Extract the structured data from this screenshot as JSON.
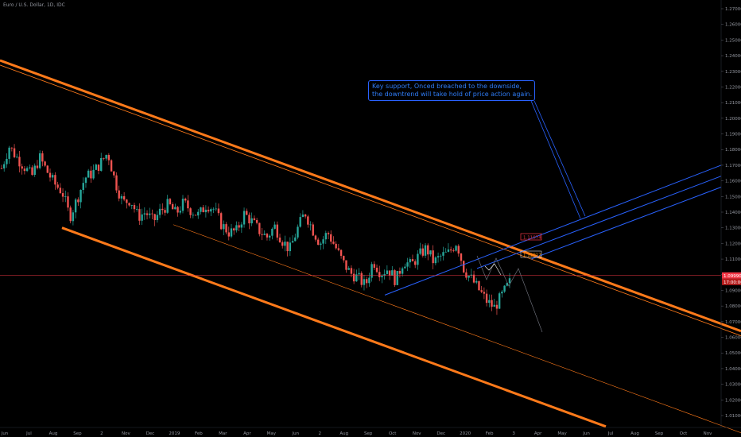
{
  "header": {
    "symbol": "Euro / U.S. Dollar, 1D, IDC"
  },
  "annotation": {
    "line1": "Key support, Onced breached to the downside,",
    "line2": "the downtrend will take hold of price action again."
  },
  "colors": {
    "background": "#000000",
    "channel": "#ff7a1a",
    "support": "#2962ff",
    "text": "#9598a1",
    "up_candle": "#26a69a",
    "down_candle": "#ef5350",
    "price_line": "#f23645",
    "badge": "#f23645"
  },
  "chart_data": {
    "type": "line",
    "title": "Euro / U.S. Dollar, 1D, IDC",
    "xlabel": "",
    "ylabel": "",
    "ylim": [
      1.0,
      1.275
    ],
    "x_ticks": [
      "Jun",
      "Jul",
      "Aug",
      "Sep",
      "2",
      "Nov",
      "Dec",
      "2019",
      "Feb",
      "Mar",
      "Apr",
      "May",
      "Jun",
      "2",
      "Aug",
      "Sep",
      "Oct",
      "Nov",
      "Dec",
      "2020",
      "Feb",
      "3",
      "Apr",
      "May",
      "Jun",
      "Jul",
      "Aug",
      "Sep",
      "Oct",
      "Nov"
    ],
    "y_ticks": [
      1.27,
      1.26,
      1.25,
      1.24,
      1.23,
      1.22,
      1.21,
      1.2,
      1.19,
      1.18,
      1.17,
      1.16,
      1.15,
      1.14,
      1.13,
      1.12,
      1.11,
      1.1,
      1.09,
      1.08,
      1.07,
      1.06,
      1.05,
      1.04,
      1.03,
      1.02,
      1.01
    ],
    "y_tick_labels": [
      "1.27000",
      "1.26000",
      "1.25000",
      "1.24000",
      "1.23000",
      "1.22000",
      "1.21000",
      "1.20000",
      "1.19000",
      "1.18000",
      "1.17000",
      "1.16000",
      "1.15000",
      "1.14000",
      "1.13000",
      "1.12000",
      "1.11000",
      "1.10000",
      "1.09000",
      "1.08000",
      "1.07000",
      "1.06000",
      "1.05000",
      "1.04000",
      "1.03000",
      "1.02000",
      "1.01000"
    ],
    "series": [
      {
        "values": [
          1.168,
          1.182,
          1.175,
          1.169,
          1.163,
          1.175,
          1.166,
          1.158,
          1.153,
          1.137,
          1.149,
          1.162,
          1.165,
          1.171,
          1.178,
          1.159,
          1.146,
          1.148,
          1.137,
          1.14,
          1.134,
          1.141,
          1.145,
          1.139,
          1.146,
          1.141,
          1.138,
          1.145,
          1.142,
          1.132,
          1.127,
          1.128,
          1.139,
          1.134,
          1.128,
          1.124,
          1.131,
          1.122,
          1.116,
          1.129,
          1.14,
          1.129,
          1.12,
          1.127,
          1.118,
          1.108,
          1.101,
          1.098,
          1.093,
          1.109,
          1.101,
          1.104,
          1.096,
          1.109,
          1.106,
          1.112,
          1.117,
          1.108,
          1.112,
          1.114,
          1.121,
          1.103,
          1.097,
          1.09,
          1.083,
          1.079,
          1.087,
          1.095
        ]
      }
    ],
    "price_labels": [
      "1.11074",
      "1.11012",
      "1.09990",
      "17:00:00"
    ]
  }
}
